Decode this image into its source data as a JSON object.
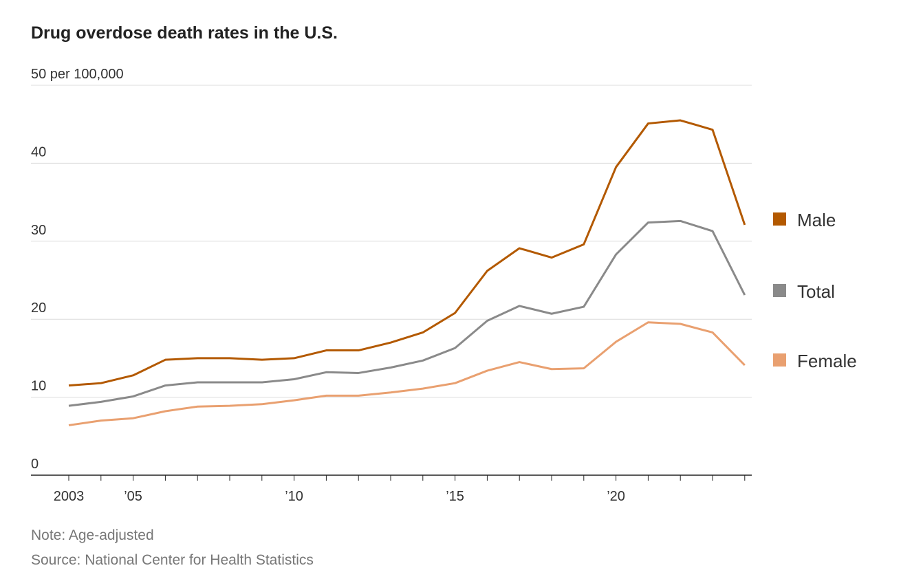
{
  "chart_data": {
    "type": "line",
    "title": "Drug overdose death rates in the U.S.",
    "ylabel": "50 per 100,000",
    "ylim": [
      0,
      50
    ],
    "yticks": [
      0,
      10,
      20,
      30,
      40
    ],
    "x": [
      2003,
      2004,
      2005,
      2006,
      2007,
      2008,
      2009,
      2010,
      2011,
      2012,
      2013,
      2014,
      2015,
      2016,
      2017,
      2018,
      2019,
      2020,
      2021,
      2022,
      2023,
      2024
    ],
    "xticks": [
      {
        "value": 2003,
        "label": "2003"
      },
      {
        "value": 2005,
        "label": "’05"
      },
      {
        "value": 2010,
        "label": "’10"
      },
      {
        "value": 2015,
        "label": "’15"
      },
      {
        "value": 2020,
        "label": "’20"
      }
    ],
    "series": [
      {
        "name": "Male",
        "color": "#b35900",
        "values": [
          11.5,
          11.8,
          12.8,
          14.8,
          15.0,
          15.0,
          14.8,
          15.0,
          16.0,
          16.0,
          17.0,
          18.3,
          20.8,
          26.2,
          29.1,
          27.9,
          29.6,
          39.5,
          45.1,
          45.5,
          44.3,
          32.1
        ]
      },
      {
        "name": "Total",
        "color": "#8a8a8a",
        "values": [
          8.9,
          9.4,
          10.1,
          11.5,
          11.9,
          11.9,
          11.9,
          12.3,
          13.2,
          13.1,
          13.8,
          14.7,
          16.3,
          19.8,
          21.7,
          20.7,
          21.6,
          28.3,
          32.4,
          32.6,
          31.3,
          23.1
        ]
      },
      {
        "name": "Female",
        "color": "#e9a070",
        "values": [
          6.4,
          7.0,
          7.3,
          8.2,
          8.8,
          8.9,
          9.1,
          9.6,
          10.2,
          10.2,
          10.6,
          11.1,
          11.8,
          13.4,
          14.5,
          13.6,
          13.7,
          17.1,
          19.6,
          19.4,
          18.3,
          14.1
        ]
      }
    ],
    "legend": "right",
    "grid": true
  },
  "notes": {
    "note": "Note: Age-adjusted",
    "source": "Source: National Center for Health Statistics"
  }
}
